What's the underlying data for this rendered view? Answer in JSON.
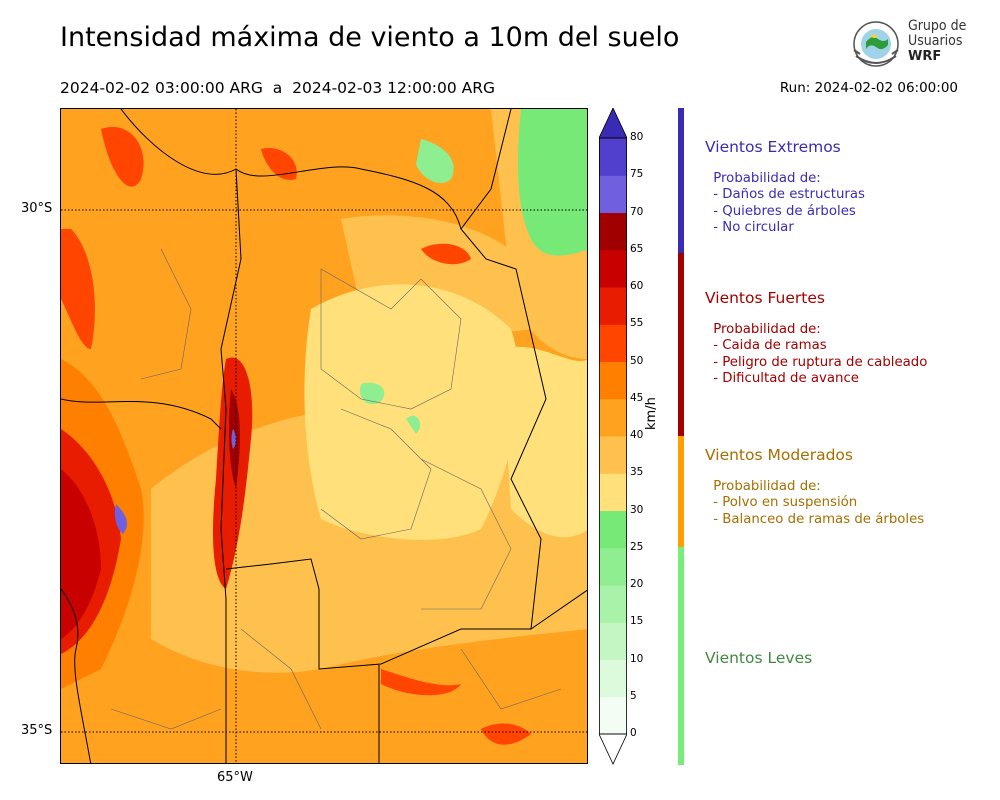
{
  "header": {
    "title": "Intensidad máxima de viento a 10m del suelo",
    "period": "2024-02-02 03:00:00 ARG  a  2024-02-03 12:00:00 ARG",
    "run": "Run: 2024-02-02 06:00:00"
  },
  "logo": {
    "line1": "Grupo de",
    "line2": "Usuarios",
    "line3": "WRF"
  },
  "map": {
    "lat_labels": [
      "30°S",
      "35°S"
    ],
    "lon_labels": [
      "65°W"
    ],
    "gridlines": true
  },
  "colorbar": {
    "unit": "km/h",
    "ticks": [
      "0",
      "5",
      "10",
      "15",
      "20",
      "25",
      "30",
      "35",
      "40",
      "45",
      "50",
      "55",
      "60",
      "65",
      "70",
      "75",
      "80"
    ],
    "colors": [
      "#f3fdf3",
      "#dcfadc",
      "#c3f6c3",
      "#a9f2a9",
      "#8fee8f",
      "#76e976",
      "#ffe07a",
      "#ffc14d",
      "#ffa21f",
      "#ff7f00",
      "#ff4500",
      "#e81c00",
      "#c80000",
      "#a00000",
      "#7060e0",
      "#5040cc",
      "#3a2bb6"
    ]
  },
  "legend": [
    {
      "title": "Vientos Extremos",
      "color": "#3a2bb6",
      "desc": " Probabilidad de:\n - Daños de estructuras\n - Quiebres de árboles\n - No circular"
    },
    {
      "title": "Vientos Fuertes",
      "color": "#a50000",
      "desc": " Probabilidad de:\n - Caida de ramas\n - Peligro de ruptura de cableado\n - Dificultad de avance"
    },
    {
      "title": "Vientos Moderados",
      "color": "#ff9f00",
      "text_color": "#a66f00",
      "desc": " Probabilidad de:\n - Polvo en suspensión\n - Balanceo de ramas de árboles"
    },
    {
      "title": "Vientos Leves",
      "color": "#77ee77",
      "text_color": "#3e8a3e",
      "desc": ""
    }
  ]
}
